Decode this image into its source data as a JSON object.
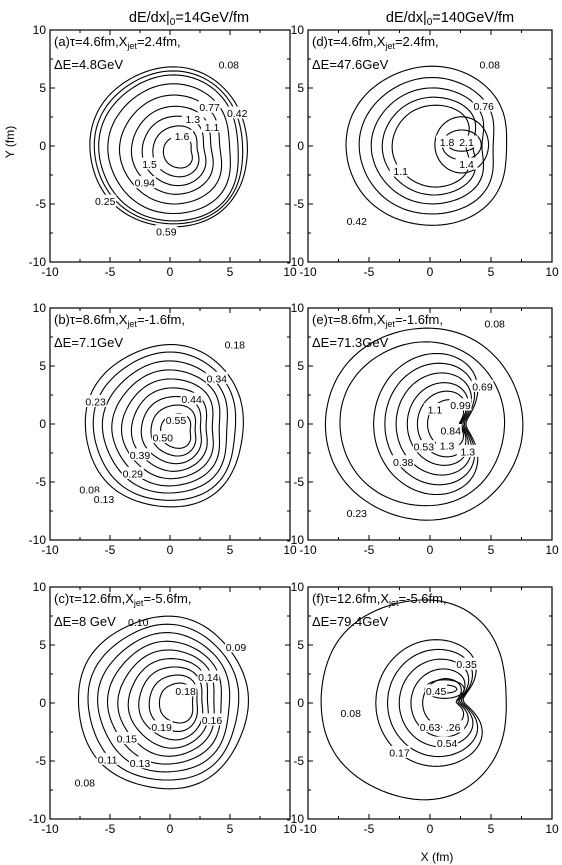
{
  "column_headers": [
    {
      "prefix": "dE/dx|",
      "sub": "0",
      "suffix": "=14GeV/fm"
    },
    {
      "prefix": "dE/dx|",
      "sub": "0",
      "suffix": "=140GeV/fm"
    }
  ],
  "axes": {
    "xlabel": "X (fm)",
    "ylabel": "Y (fm)"
  },
  "chart_data": [
    {
      "type": "contour",
      "id": "a",
      "xlim": [
        -10,
        10
      ],
      "ylim": [
        -10,
        10
      ],
      "xticks": [
        -10,
        -5,
        0,
        5,
        10
      ],
      "yticks": [
        -10,
        -5,
        0,
        5,
        10
      ],
      "line1": "(a)τ=4.6fm,X",
      "line1_sub": "jet",
      "line1_end": "=2.4fm,",
      "line2": "ΔE=4.8GeV",
      "contour_labels": [
        {
          "text": "0.08",
          "x": 4.9,
          "y": 7.0
        },
        {
          "text": "0.77",
          "x": 3.3,
          "y": 3.3
        },
        {
          "text": "0.42",
          "x": 5.6,
          "y": 2.8
        },
        {
          "text": "1.3",
          "x": 1.9,
          "y": 2.3
        },
        {
          "text": "1.1",
          "x": 3.5,
          "y": 1.6
        },
        {
          "text": "1.6",
          "x": 1.0,
          "y": 0.8
        },
        {
          "text": "1.5",
          "x": -1.7,
          "y": -1.6
        },
        {
          "text": "0.94",
          "x": -2.1,
          "y": -3.2
        },
        {
          "text": "0.25",
          "x": -5.4,
          "y": -4.8
        },
        {
          "text": "0.59",
          "x": -0.3,
          "y": -7.4
        }
      ]
    },
    {
      "type": "contour",
      "id": "d",
      "xlim": [
        -10,
        10
      ],
      "ylim": [
        -10,
        10
      ],
      "xticks": [
        -10,
        -5,
        0,
        5,
        10
      ],
      "yticks": [
        -10,
        -5,
        0,
        5,
        10
      ],
      "line1": "(d)τ=4.6fm,X",
      "line1_sub": "jet",
      "line1_end": "=2.4fm,",
      "line2": "ΔE=47.6GeV",
      "contour_labels": [
        {
          "text": "0.08",
          "x": 4.9,
          "y": 7.0
        },
        {
          "text": "0.76",
          "x": 4.4,
          "y": 3.4
        },
        {
          "text": "1.8",
          "x": 1.4,
          "y": 0.3
        },
        {
          "text": "2.1",
          "x": 3.0,
          "y": 0.3
        },
        {
          "text": "1.4",
          "x": 3.0,
          "y": -1.6
        },
        {
          "text": "1.1",
          "x": -2.4,
          "y": -2.2
        },
        {
          "text": "0.42",
          "x": -6.0,
          "y": -6.5
        }
      ]
    },
    {
      "type": "contour",
      "id": "b",
      "xlim": [
        -10,
        10
      ],
      "ylim": [
        -10,
        10
      ],
      "xticks": [
        -10,
        -5,
        0,
        5,
        10
      ],
      "yticks": [
        -10,
        -5,
        0,
        5,
        10
      ],
      "line1": "(b)τ=8.6fm,X",
      "line1_sub": "jet",
      "line1_end": "=-1.6fm,",
      "line2": "ΔE=7.1GeV",
      "contour_labels": [
        {
          "text": "0.18",
          "x": 5.4,
          "y": 6.8
        },
        {
          "text": "0.34",
          "x": 3.9,
          "y": 3.9
        },
        {
          "text": "0.44",
          "x": 1.8,
          "y": 2.1
        },
        {
          "text": "0.23",
          "x": -6.2,
          "y": 1.9
        },
        {
          "text": "0.55",
          "x": 0.5,
          "y": 0.3
        },
        {
          "text": "0.50",
          "x": -0.6,
          "y": -1.2
        },
        {
          "text": "0.39",
          "x": -2.5,
          "y": -2.7
        },
        {
          "text": "0.29",
          "x": -3.1,
          "y": -4.3
        },
        {
          "text": "0.08",
          "x": -6.7,
          "y": -5.7
        },
        {
          "text": "0.13",
          "x": -5.5,
          "y": -6.5
        }
      ]
    },
    {
      "type": "contour",
      "id": "e",
      "xlim": [
        -10,
        10
      ],
      "ylim": [
        -10,
        10
      ],
      "xticks": [
        -10,
        -5,
        0,
        5,
        10
      ],
      "yticks": [
        -10,
        -5,
        0,
        5,
        10
      ],
      "line1": "(e)τ=8.6fm,X",
      "line1_sub": "jet",
      "line1_end": "=-1.6fm,",
      "line2": "ΔE=71.3GeV",
      "contour_labels": [
        {
          "text": "0.08",
          "x": 5.3,
          "y": 8.6
        },
        {
          "text": "0.69",
          "x": 4.3,
          "y": 3.2
        },
        {
          "text": "0.99",
          "x": 2.5,
          "y": 1.6
        },
        {
          "text": "1.1",
          "x": 0.4,
          "y": 1.2
        },
        {
          "text": "0.84",
          "x": 1.7,
          "y": -0.6
        },
        {
          "text": "0.53",
          "x": -0.5,
          "y": -2.0
        },
        {
          "text": "1.3",
          "x": 1.4,
          "y": -1.9
        },
        {
          "text": "1.3",
          "x": 3.1,
          "y": -2.4
        },
        {
          "text": "0.38",
          "x": -2.2,
          "y": -3.3
        },
        {
          "text": "0.23",
          "x": -6.0,
          "y": -7.7
        }
      ]
    },
    {
      "type": "contour",
      "id": "c",
      "xlim": [
        -10,
        10
      ],
      "ylim": [
        -10,
        10
      ],
      "xticks": [
        -10,
        -5,
        0,
        5,
        10
      ],
      "yticks": [
        -10,
        -5,
        0,
        5,
        10
      ],
      "line1": "(c)τ=12.6fm,X",
      "line1_sub": "jet",
      "line1_end": "=-5.6fm,",
      "line2": "ΔE=8 GeV",
      "line2_extra": "0.10",
      "contour_labels": [
        {
          "text": "0.09",
          "x": 5.5,
          "y": 4.8
        },
        {
          "text": "0.14",
          "x": 3.2,
          "y": 2.2
        },
        {
          "text": "0.18",
          "x": 1.3,
          "y": 1.0
        },
        {
          "text": "0.16",
          "x": 3.5,
          "y": -1.5
        },
        {
          "text": "0.19",
          "x": -0.7,
          "y": -2.1
        },
        {
          "text": "0.15",
          "x": -3.6,
          "y": -3.1
        },
        {
          "text": "0.11",
          "x": -5.2,
          "y": -4.9
        },
        {
          "text": "0.13",
          "x": -2.5,
          "y": -5.2
        },
        {
          "text": "0.08",
          "x": -7.1,
          "y": -6.9
        }
      ]
    },
    {
      "type": "contour",
      "id": "f",
      "xlim": [
        -10,
        10
      ],
      "ylim": [
        -10,
        10
      ],
      "xticks": [
        -10,
        -5,
        0,
        5,
        10
      ],
      "yticks": [
        -10,
        -5,
        0,
        5,
        10
      ],
      "line1": "(f)τ=12.6fm,X",
      "line1_sub": "jet",
      "line1_end": "=-5.6fm,",
      "line2": "ΔE=79.4GeV",
      "contour_labels": [
        {
          "text": "0.35",
          "x": 3.0,
          "y": 3.3
        },
        {
          "text": "0.45",
          "x": 0.5,
          "y": 1.0
        },
        {
          "text": "0.08",
          "x": -6.5,
          "y": -0.9
        },
        {
          "text": "0.63",
          "x": 0.0,
          "y": -2.1
        },
        {
          "text": ".26",
          "x": 1.9,
          "y": -2.1
        },
        {
          "text": "0.54",
          "x": 1.4,
          "y": -3.5
        },
        {
          "text": "0.17",
          "x": -2.5,
          "y": -4.3
        }
      ]
    }
  ]
}
